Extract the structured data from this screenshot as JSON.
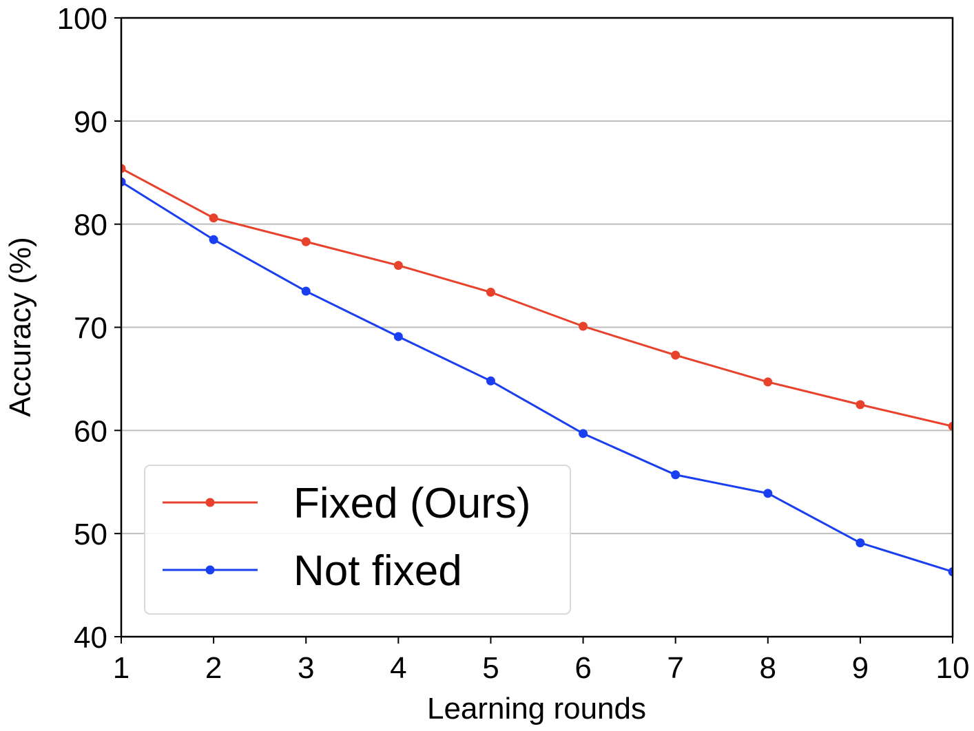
{
  "chart_data": {
    "type": "line",
    "x_label": "Learning rounds",
    "y_label": "Accuracy (%)",
    "x": [
      1,
      2,
      3,
      4,
      5,
      6,
      7,
      8,
      9,
      10
    ],
    "series": [
      {
        "name": "Fixed (Ours)",
        "color": "#e8412c",
        "values": [
          85.4,
          80.6,
          78.3,
          76.0,
          73.4,
          70.1,
          67.3,
          64.7,
          62.5,
          60.4
        ]
      },
      {
        "name": "Not fixed",
        "color": "#1a3ff0",
        "values": [
          84.1,
          78.5,
          73.5,
          69.1,
          64.8,
          59.7,
          55.7,
          53.9,
          49.1,
          46.3
        ]
      }
    ],
    "xlim": [
      1,
      10
    ],
    "xticks": [
      1,
      2,
      3,
      4,
      5,
      6,
      7,
      8,
      9,
      10
    ],
    "ylim": [
      40,
      100
    ],
    "yticks": [
      40,
      50,
      60,
      70,
      80,
      90,
      100
    ],
    "grid": true,
    "legend": "lower left"
  }
}
